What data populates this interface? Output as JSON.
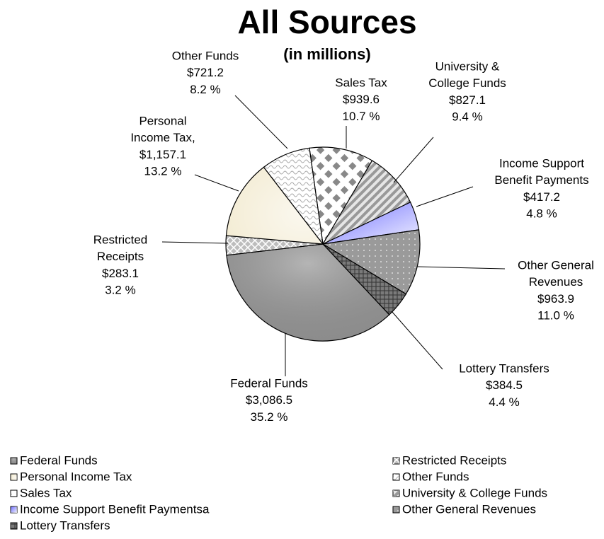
{
  "chart_data": {
    "type": "pie",
    "title": "All Sources",
    "subtitle": "(in millions)",
    "categories": [
      "Sales Tax",
      "University & College Funds",
      "Income Support Benefit Paymentsa",
      "Other General Revenues",
      "Lottery Transfers",
      "Federal Funds",
      "Restricted Receipts",
      "Personal Income Tax",
      "Other Funds"
    ],
    "slice_labels": [
      [
        "Sales Tax"
      ],
      [
        "University &",
        "College Funds"
      ],
      [
        "Income Support",
        "Benefit Payments"
      ],
      [
        "Other General",
        "Revenues"
      ],
      [
        "Lottery Transfers"
      ],
      [
        "Federal Funds"
      ],
      [
        "Restricted",
        "Receipts"
      ],
      [
        "Personal",
        "Income Tax,"
      ],
      [
        "Other Funds"
      ]
    ],
    "values": [
      939.6,
      827.1,
      417.2,
      963.9,
      384.5,
      3086.5,
      283.1,
      1157.1,
      721.2
    ],
    "value_labels": [
      "$939.6",
      "$827.1",
      "$417.2",
      "$963.9",
      "$384.5",
      "$3,086.5",
      "$283.1",
      "$1,157.1",
      "$721.2"
    ],
    "percent_labels": [
      "10.7 %",
      "9.4 %",
      "4.8 %",
      "11.0 %",
      "4.4 %",
      "35.2 %",
      "3.2 %",
      "13.2 %",
      "8.2 %"
    ],
    "colors": [
      "#ffffff",
      "#e6e6e6",
      "#6f6fff",
      "#9a9a9a",
      "#7a7a7a",
      "#9c9c9c",
      "#bdbdbd",
      "#f4edd6",
      "#ffffff"
    ]
  }
}
